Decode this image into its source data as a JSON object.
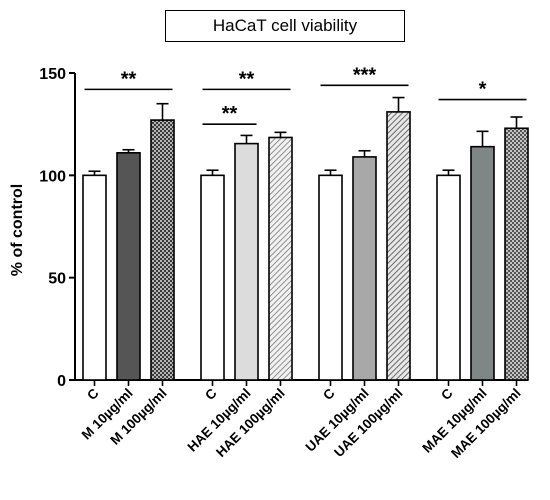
{
  "chart_data": {
    "type": "bar",
    "title": "HaCaT cell viability",
    "ylabel": "% of control",
    "xlabel": "",
    "ylim": [
      0,
      150
    ],
    "yticks": [
      0,
      50,
      100,
      150
    ],
    "grid": false,
    "categories": [
      "C",
      "M 10µg/ml",
      "M 100µg/ml",
      "C",
      "HAE 10µg/ml",
      "HAE 100µg/ml",
      "C",
      "UAE 10µg/ml",
      "UAE 100µg/ml",
      "C",
      "MAE 10µg/ml",
      "MAE 100µg/ml"
    ],
    "values": [
      100,
      111,
      127,
      100,
      115.5,
      118.5,
      100,
      109,
      131,
      100,
      114,
      123
    ],
    "errors": [
      2,
      1.5,
      8,
      2.5,
      4,
      2.5,
      2.5,
      3,
      7,
      2.5,
      7.5,
      5.5
    ],
    "groups": [
      {
        "name": "M",
        "bar_styles": [
          "white",
          "dark-gray",
          "checker-dark"
        ]
      },
      {
        "name": "HAE",
        "bar_styles": [
          "white",
          "light-gray",
          "hatch-light"
        ]
      },
      {
        "name": "UAE",
        "bar_styles": [
          "white",
          "medium-gray",
          "hatch-medium"
        ]
      },
      {
        "name": "MAE",
        "bar_styles": [
          "white",
          "slate-gray",
          "checker-medium"
        ]
      }
    ],
    "significance": [
      {
        "label": "**",
        "from": 0,
        "to": 2,
        "y": 142
      },
      {
        "label": "**",
        "from": 3,
        "to": 4,
        "y": 125
      },
      {
        "label": "**",
        "from": 3,
        "to": 5,
        "y": 142
      },
      {
        "label": "***",
        "from": 6,
        "to": 8,
        "y": 144
      },
      {
        "label": "*",
        "from": 9,
        "to": 11,
        "y": 137
      }
    ],
    "colors": {
      "white": "#ffffff",
      "dark-gray": "#555555",
      "light-gray": "#dcdcdc",
      "medium-gray": "#a8a8a8",
      "slate-gray": "#7e8686",
      "stroke": "#000000"
    }
  }
}
